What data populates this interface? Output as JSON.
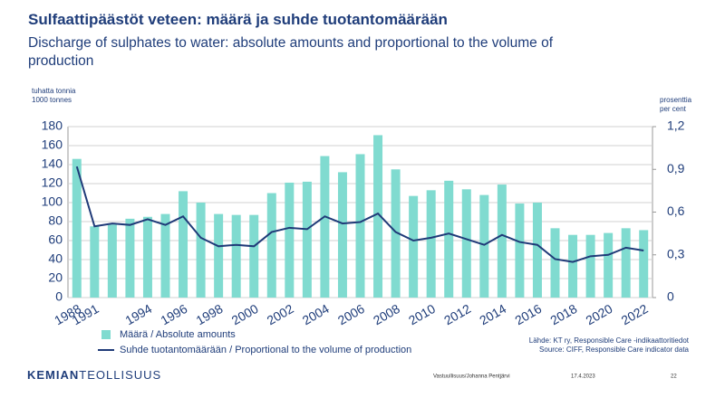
{
  "chart_data": {
    "type": "combo",
    "title": "Sulfaattipäästöt veteen: määrä ja suhde tuotantomäärään",
    "subtitle": "Discharge of sulphates to water: absolute amounts and proportional to the volume of production",
    "y_label": [
      "tuhatta tonnia",
      "1000 tonnes"
    ],
    "y2_label": [
      "prosenttia",
      "per cent"
    ],
    "categories": [
      "1988",
      "1991",
      null,
      null,
      "1994",
      null,
      "1996",
      null,
      "1998",
      null,
      "2000",
      null,
      "2002",
      null,
      "2004",
      null,
      "2006",
      null,
      "2008",
      null,
      "2010",
      null,
      "2012",
      null,
      "2014",
      null,
      "2016",
      null,
      "2018",
      null,
      "2020",
      null,
      "2022"
    ],
    "series": [
      {
        "name": "Määrä / Absolute amounts",
        "type": "bar",
        "color": "#80dbd0",
        "values": [
          146,
          75,
          77,
          83,
          85,
          88,
          112,
          100,
          88,
          87,
          87,
          110,
          121,
          122,
          149,
          132,
          151,
          171,
          135,
          107,
          113,
          123,
          114,
          108,
          119,
          99,
          100,
          73,
          66,
          66,
          68,
          73,
          71
        ]
      },
      {
        "name": "Suhde tuotantomäärään / Proportional to the volume of production",
        "type": "line",
        "axis": "y2",
        "color": "#1f3a78",
        "values": [
          0.92,
          0.5,
          0.52,
          0.51,
          0.55,
          0.51,
          0.57,
          0.42,
          0.36,
          0.37,
          0.36,
          0.46,
          0.49,
          0.48,
          0.57,
          0.52,
          0.53,
          0.59,
          0.46,
          0.4,
          0.42,
          0.45,
          0.41,
          0.37,
          0.44,
          0.39,
          0.37,
          0.27,
          0.25,
          0.29,
          0.3,
          0.35,
          0.33
        ]
      }
    ],
    "ylim": [
      0,
      180
    ],
    "yticks": [
      0,
      20,
      40,
      60,
      80,
      100,
      120,
      140,
      160,
      180
    ],
    "y2lim": [
      0,
      1.2
    ],
    "y2ticks": [
      0,
      {
        "value": 0.3,
        "label": "0,3"
      },
      {
        "value": 0.6,
        "label": "0,6"
      },
      {
        "value": 0.9,
        "label": "0,9"
      },
      {
        "value": 1.2,
        "label": "1,2"
      }
    ],
    "grid": true,
    "source": [
      "Lähde: KT ry, Responsible Care -indikaattoritiedot",
      "Source: CIFF, Responsible Care indicator data"
    ]
  },
  "footer": {
    "logo_bold": "KEMIAN",
    "logo_rest": "TEOLLISUUS",
    "author": "Vastuullisuus/Johanna Pentjärvi",
    "date": "17.4.2023",
    "page": "22"
  }
}
